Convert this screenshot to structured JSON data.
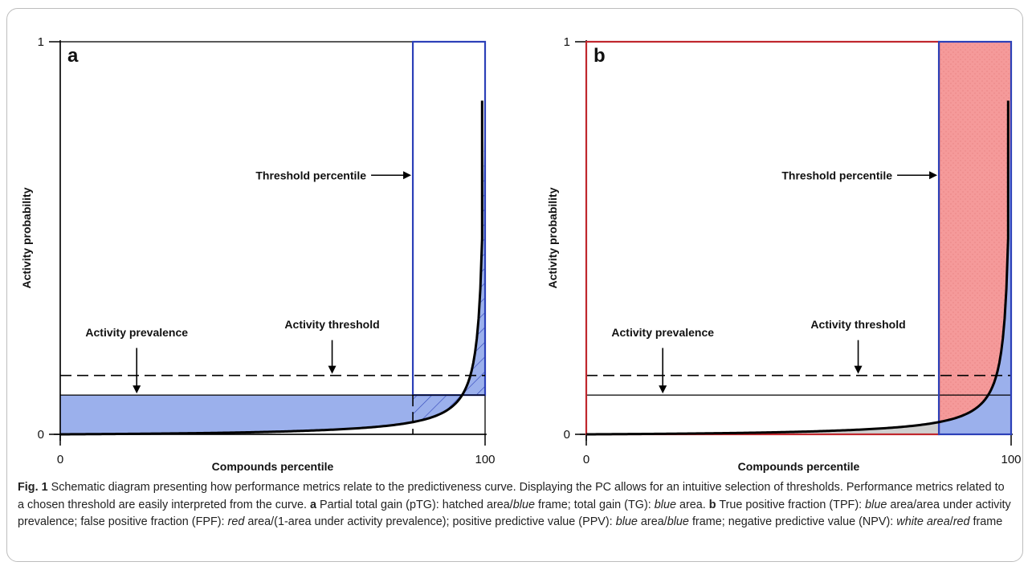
{
  "colors": {
    "blue_fill": "#9bb0ec",
    "blue_frame": "#2c40b8",
    "red_fill": "#f59a9a",
    "red_frame": "#c0272d",
    "gray_fill": "#cfcfcf",
    "curve": "#000000"
  },
  "chart_data": [
    {
      "type": "area",
      "panel_label": "a",
      "xlabel": "Compounds percentile",
      "ylabel": "Activity probability",
      "xlim": [
        0,
        100
      ],
      "ylim": [
        0,
        1
      ],
      "x_ticks": [
        "0",
        "100"
      ],
      "y_ticks": [
        "0",
        "1"
      ],
      "threshold_percentile": 83,
      "activity_threshold": 0.15,
      "activity_prevalence": 0.1,
      "curve_peak": 0.85,
      "annotations": {
        "threshold_percentile": "Threshold percentile",
        "activity_threshold": "Activity threshold",
        "activity_prevalence": "Activity prevalence"
      }
    },
    {
      "type": "area",
      "panel_label": "b",
      "xlabel": "Compounds percentile",
      "ylabel": "Activity probability",
      "xlim": [
        0,
        100
      ],
      "ylim": [
        0,
        1
      ],
      "x_ticks": [
        "0",
        "100"
      ],
      "y_ticks": [
        "0",
        "1"
      ],
      "threshold_percentile": 83,
      "activity_threshold": 0.15,
      "activity_prevalence": 0.1,
      "curve_peak": 0.85,
      "annotations": {
        "threshold_percentile": "Threshold percentile",
        "activity_threshold": "Activity threshold",
        "activity_prevalence": "Activity prevalence"
      }
    }
  ],
  "caption": {
    "fig_label": "Fig. 1",
    "intro": "Schematic diagram presenting how performance metrics relate to the predictiveness curve. Displaying the PC allows for an intuitive selection of thresholds. Performance metrics related to a chosen threshold are easily interpreted from the curve.",
    "a_label": "a",
    "a_text_1": "Partial total gain (pTG): hatched area/",
    "a_em_1": "blue",
    "a_text_2": "frame; total gain (TG):",
    "a_em_2": "blue",
    "a_text_3": "area.",
    "b_label": "b",
    "b_text_1": "True positive fraction (TPF):",
    "b_em_1": "blue",
    "b_text_2": "area/area under activity prevalence; false positive fraction (FPF):",
    "b_em_2": "red",
    "b_text_3": "area/(1-area under activity prevalence); positive predictive value (PPV):",
    "b_em_3": "blue",
    "b_text_4": "area/",
    "b_em_4": "blue",
    "b_text_5": "frame; negative predictive value (NPV):",
    "b_em_5": "white area",
    "b_text_6": "/",
    "b_em_6": "red",
    "b_text_7": "frame"
  }
}
